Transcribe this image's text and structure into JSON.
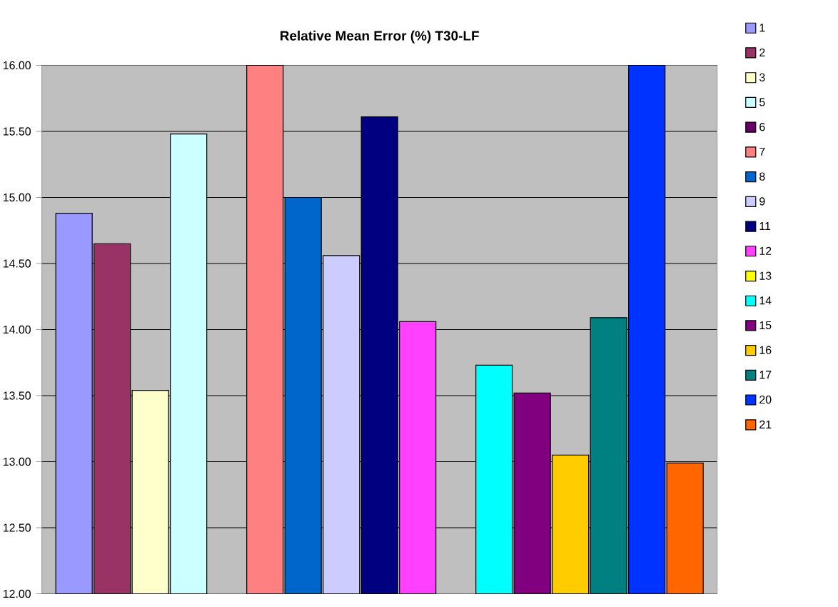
{
  "chart_data": {
    "type": "bar",
    "title": "Relative Mean Error (%) T30-LF",
    "categories": [
      null
    ],
    "series": [
      {
        "name": "1",
        "color": "#9999ff",
        "values": [
          14.88
        ]
      },
      {
        "name": "2",
        "color": "#993366",
        "values": [
          14.65
        ]
      },
      {
        "name": "3",
        "color": "#ffffcc",
        "values": [
          13.54
        ]
      },
      {
        "name": "5",
        "color": "#ccffff",
        "values": [
          15.48
        ]
      },
      {
        "name": "6",
        "color": "#660066",
        "values": [
          null
        ]
      },
      {
        "name": "7",
        "color": "#ff8080",
        "values": [
          16.0
        ]
      },
      {
        "name": "8",
        "color": "#0066cc",
        "values": [
          15.0
        ]
      },
      {
        "name": "9",
        "color": "#ccccff",
        "values": [
          14.56
        ]
      },
      {
        "name": "11",
        "color": "#000080",
        "values": [
          15.61
        ]
      },
      {
        "name": "12",
        "color": "#ff40ff",
        "values": [
          14.06
        ]
      },
      {
        "name": "13",
        "color": "#ffff00",
        "values": [
          null
        ]
      },
      {
        "name": "14",
        "color": "#00ffff",
        "values": [
          13.73
        ]
      },
      {
        "name": "15",
        "color": "#800080",
        "values": [
          13.52
        ]
      },
      {
        "name": "16",
        "color": "#ffcc00",
        "values": [
          13.05
        ]
      },
      {
        "name": "17",
        "color": "#008080",
        "values": [
          14.09
        ]
      },
      {
        "name": "20",
        "color": "#0033ff",
        "values": [
          16.0
        ]
      },
      {
        "name": "21",
        "color": "#ff6600",
        "values": [
          12.99
        ]
      }
    ],
    "ylim": [
      12,
      16
    ],
    "yticks": [
      {
        "value": 12,
        "label": "12.00"
      },
      {
        "value": 12.5,
        "label": "12.50"
      },
      {
        "value": 13,
        "label": "13.00"
      },
      {
        "value": 13.5,
        "label": "13.50"
      },
      {
        "value": 14,
        "label": "14.00"
      },
      {
        "value": 14.5,
        "label": "14.50"
      },
      {
        "value": 15,
        "label": "15.00"
      },
      {
        "value": 15.5,
        "label": "15.50"
      },
      {
        "value": 16,
        "label": "16.00"
      }
    ],
    "grid": "y",
    "legend": "right"
  }
}
